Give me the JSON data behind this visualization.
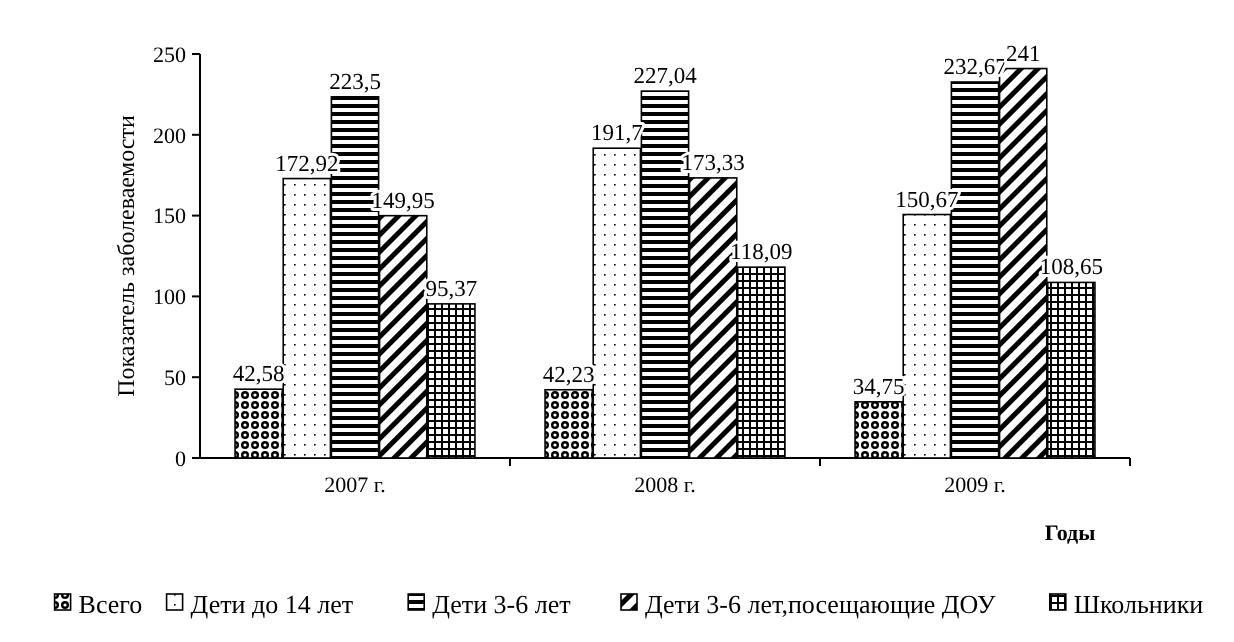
{
  "chart_data": {
    "type": "bar",
    "xlabel": "Годы",
    "ylabel": "Показатель заболеваемости",
    "categories": [
      "2007 г.",
      "2008 г.",
      "2009 г."
    ],
    "series": [
      {
        "name": "Всего",
        "color": "#000000",
        "values": [
          42.58,
          42.23,
          34.75
        ],
        "value_labels": [
          "42,58",
          "42,23",
          "34,75"
        ]
      },
      {
        "name": "Дети до 14 лет",
        "color": "#000000",
        "values": [
          172.92,
          191.7,
          150.67
        ],
        "value_labels": [
          "172,92",
          "191,7",
          "150,67"
        ]
      },
      {
        "name": "Дети 3-6 лет",
        "color": "#000000",
        "values": [
          223.5,
          227.04,
          232.67
        ],
        "value_labels": [
          "223,5",
          "227,04",
          "232,67"
        ]
      },
      {
        "name": "Дети 3-6 лет,посещающие ДОУ",
        "color": "#000000",
        "values": [
          149.95,
          173.33,
          241
        ],
        "value_labels": [
          "149,95",
          "173,33",
          "241"
        ]
      },
      {
        "name": "Школьники",
        "color": "#000000",
        "values": [
          95.37,
          118.09,
          108.65
        ],
        "value_labels": [
          "95,37",
          "118,09",
          "108,65"
        ]
      }
    ],
    "ylim": [
      0,
      250
    ],
    "yticks": [
      0,
      50,
      100,
      150,
      200,
      250
    ],
    "grid": false,
    "legend": "bottom"
  }
}
